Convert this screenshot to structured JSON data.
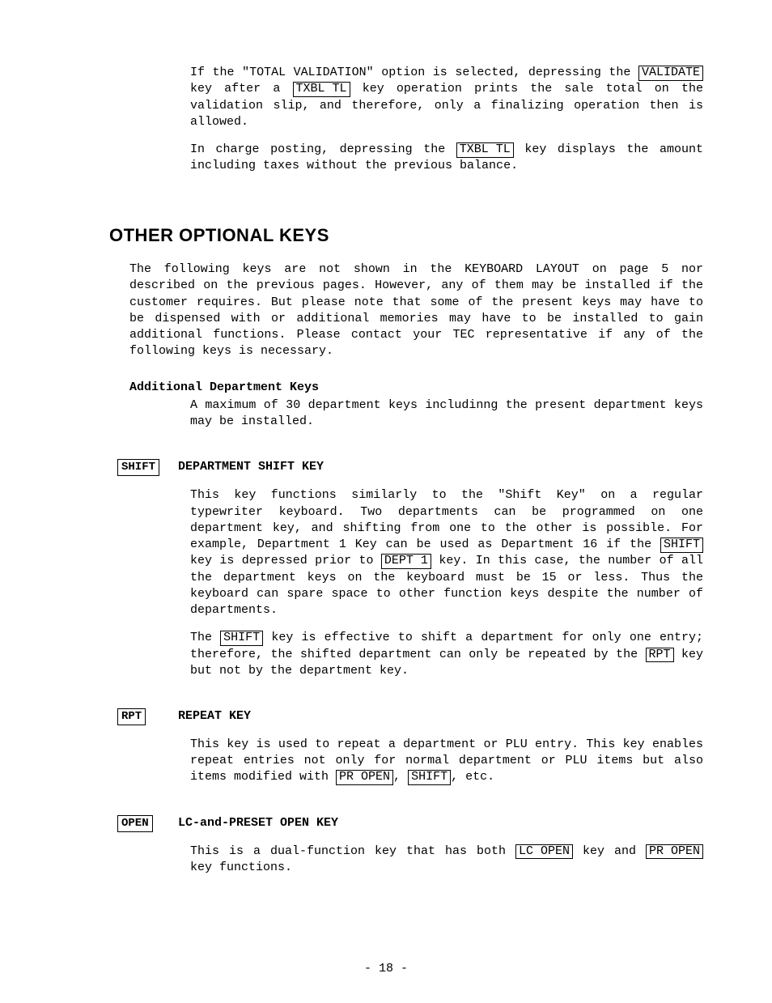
{
  "intro": {
    "p1_a": "If the \"TOTAL VALIDATION\" option is selected, depressing the ",
    "p1_key1": "VALIDATE",
    "p1_b": " key after a ",
    "p1_key2": "TXBL TL",
    "p1_c": " key operation prints the sale total on the validation slip, and therefore, only a finalizing operation then is allowed.",
    "p2_a": "In charge posting, depressing the ",
    "p2_key1": "TXBL TL",
    "p2_b": " key displays the amount including taxes without the previous balance."
  },
  "section_title": "OTHER OPTIONAL KEYS",
  "section_intro": "The following keys are not shown in the KEYBOARD LAYOUT on page 5 nor described on the previous pages. However, any of them may be installed if the customer requires. But please note that some of the present keys may have to be dispensed with or additional memories may have to be installed to gain additional functions. Please contact your TEC representative if any of the following keys is necessary.",
  "adk": {
    "heading": "Additional Department Keys",
    "body": "A maximum of 30 department keys includinng the present department keys may be installed."
  },
  "shift": {
    "keylabel": "SHIFT",
    "title": "DEPARTMENT SHIFT KEY",
    "p1_a": "This key functions similarly to the \"Shift Key\" on a regular typewriter keyboard. Two departments can be programmed on one department key, and shifting from one to the other is possible. For example, Department 1 Key can be used as Department 16 if the ",
    "p1_key1": "SHIFT",
    "p1_b": " key is depressed prior to ",
    "p1_key2": "DEPT 1",
    "p1_c": " key. In this case, the number of all the department keys on the keyboard must be 15 or less. Thus the keyboard can spare space to other function keys despite the number of departments.",
    "p2_a": "The ",
    "p2_key1": "SHIFT",
    "p2_b": " key is effective to shift a department for only one entry; therefore, the shifted department can only be repeated by the ",
    "p2_key2": "RPT",
    "p2_c": " key but not by the department key."
  },
  "rpt": {
    "keylabel": "RPT",
    "title": "REPEAT KEY",
    "p1_a": "This key is used to repeat a department or PLU entry. This key enables repeat entries not only for normal department or PLU items but also items modified with ",
    "p1_key1": "PR OPEN",
    "p1_b": ", ",
    "p1_key2": "SHIFT",
    "p1_c": ", etc."
  },
  "open": {
    "keylabel": "OPEN",
    "title": "LC-and-PRESET OPEN KEY",
    "p1_a": "This is a dual-function key that has both ",
    "p1_key1": "LC OPEN",
    "p1_b": " key and ",
    "p1_key2": "PR OPEN",
    "p1_c": " key functions."
  },
  "page_number": "- 18 -"
}
